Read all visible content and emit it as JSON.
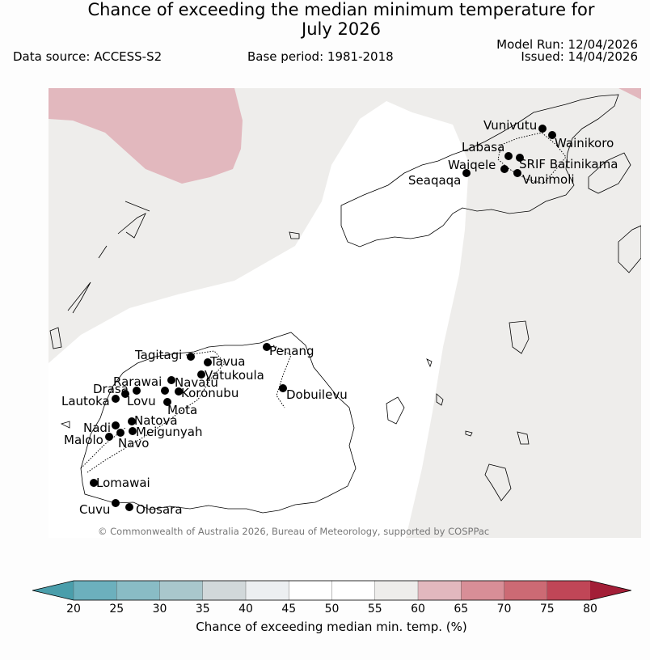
{
  "header": {
    "title_line1": "Chance of exceeding the median minimum temperature for",
    "title_line2": "July 2026",
    "data_source": "Data source: ACCESS-S2",
    "base_period": "Base period: 1981-2018",
    "model_run": "Model Run: 12/04/2026",
    "issued": "Issued: 14/04/2026"
  },
  "map": {
    "copyright": "© Commonwealth of Australia 2026, Bureau of Meteorology, supported by COSPPac",
    "colors": {
      "ocean_neutral": "#eeedeb",
      "near_median": "#ffffff",
      "warm_65": "#e2b8be",
      "land_line": "#000000"
    },
    "towns": [
      {
        "name": "Vunivutu"
      },
      {
        "name": "Wainikoro"
      },
      {
        "name": "Labasa"
      },
      {
        "name": "Waiqele"
      },
      {
        "name": "SRIF Batinikama"
      },
      {
        "name": "Seaqaqa"
      },
      {
        "name": "Vunimoli"
      },
      {
        "name": "Tagitagi"
      },
      {
        "name": "Tavua"
      },
      {
        "name": "Penang"
      },
      {
        "name": "Vatukoula"
      },
      {
        "name": "Rarawai"
      },
      {
        "name": "Navatu"
      },
      {
        "name": "Drasa"
      },
      {
        "name": "Koronubu"
      },
      {
        "name": "Dobuilevu"
      },
      {
        "name": "Lautoka"
      },
      {
        "name": "Lovu"
      },
      {
        "name": "Mota"
      },
      {
        "name": "Natova"
      },
      {
        "name": "Nadi"
      },
      {
        "name": "Meigunyah"
      },
      {
        "name": "Malolo"
      },
      {
        "name": "Navo"
      },
      {
        "name": "Lomawai"
      },
      {
        "name": "Cuvu"
      },
      {
        "name": "Olosara"
      }
    ]
  },
  "colorbar": {
    "label": "Chance of exceeding median min. temp. (%)",
    "ticks": [
      "20",
      "25",
      "30",
      "35",
      "40",
      "45",
      "50",
      "55",
      "60",
      "65",
      "70",
      "75",
      "80"
    ],
    "under_color": "#4a9eab",
    "over_color": "#a31e37",
    "segment_colors": [
      "#6cb0bd",
      "#89bcc5",
      "#a9c7cc",
      "#d1d8da",
      "#eceff1",
      "#ffffff",
      "#ffffff",
      "#eeedeb",
      "#e2b8be",
      "#d88e97",
      "#cc6a74",
      "#c04657"
    ]
  }
}
